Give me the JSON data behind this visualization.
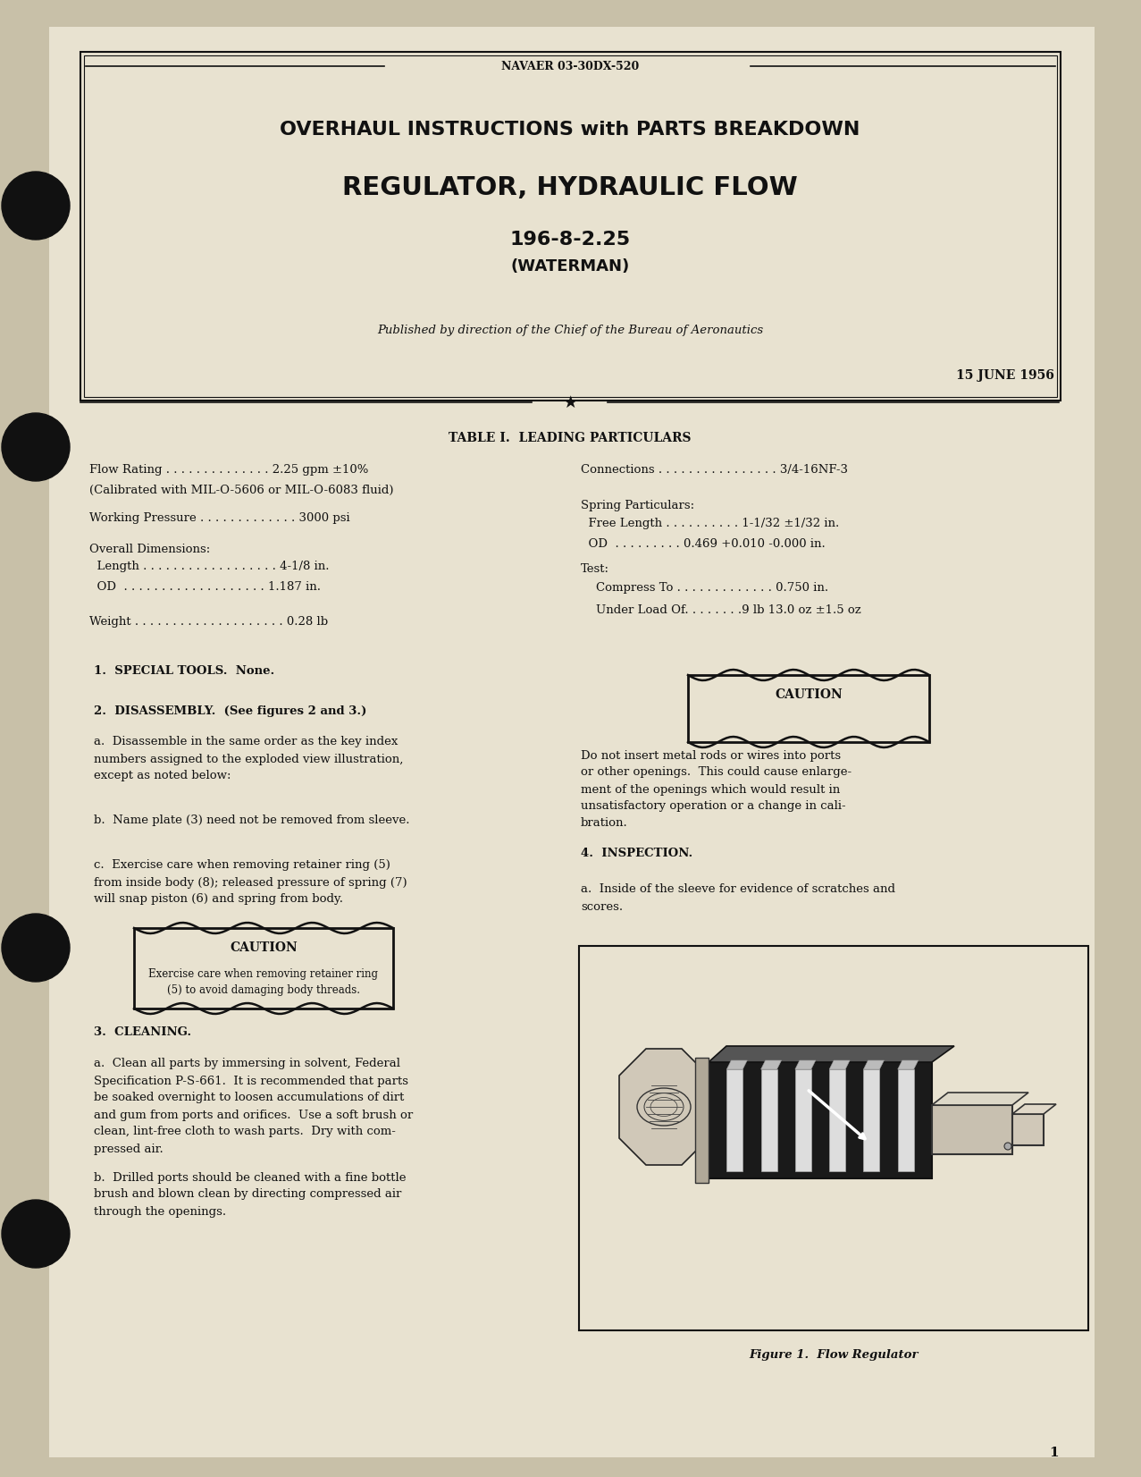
{
  "bg_color": "#c8c0a8",
  "paper_color": "#e8e2d0",
  "inner_paper": "#ede8d8",
  "text_color": "#111111",
  "doc_number": "NAVAER 03-30DX-520",
  "title_line1": "OVERHAUL INSTRUCTIONS with PARTS BREAKDOWN",
  "title_line2": "REGULATOR, HYDRAULIC FLOW",
  "title_line3": "196-8-2.25",
  "title_line4": "(WATERMAN)",
  "published_by": "Published by direction of the Chief of the Bureau of Aeronautics",
  "date": "15 JUNE 1956",
  "table_title": "TABLE I.  LEADING PARTICULARS",
  "section1": "1.  SPECIAL TOOLS.  None.",
  "section2": "2.  DISASSEMBLY.  (See figures 2 and 3.)",
  "section2a_lines": [
    "a.  Disassemble in the same order as the key index",
    "numbers assigned to the exploded view illustration,",
    "except as noted below:"
  ],
  "section2b": "b.  Name plate (3) need not be removed from sleeve.",
  "section2c_lines": [
    "c.  Exercise care when removing retainer ring (5)",
    "from inside body (8); released pressure of spring (7)",
    "will snap piston (6) and spring from body."
  ],
  "caution1_lines": [
    "Exercise care when removing retainer ring",
    "(5) to avoid damaging body threads."
  ],
  "caution2_lines": [
    "Do not insert metal rods or wires into ports",
    "or other openings.  This could cause enlarge-",
    "ment of the openings which would result in",
    "unsatisfactory operation or a change in cali-",
    "bration."
  ],
  "section3": "3.  CLEANING.",
  "section3a_lines": [
    "a.  Clean all parts by immersing in solvent, Federal",
    "Specification P-S-661.  It is recommended that parts",
    "be soaked overnight to loosen accumulations of dirt",
    "and gum from ports and orifices.  Use a soft brush or",
    "clean, lint-free cloth to wash parts.  Dry with com-",
    "pressed air."
  ],
  "section3b_lines": [
    "b.  Drilled ports should be cleaned with a fine bottle",
    "brush and blown clean by directing compressed air",
    "through the openings."
  ],
  "section4": "4.  INSPECTION.",
  "section4a_lines": [
    "a.  Inside of the sleeve for evidence of scratches and",
    "scores."
  ],
  "figure_caption": "Figure 1.  Flow Regulator",
  "page_num": "1",
  "left_table": [
    "Flow Rating . . . . . . . . . . . . . . 2.25 gpm ±10%",
    "(Calibrated with MIL-O-5606 or MIL-O-6083 fluid)",
    "Working Pressure . . . . . . . . . . . . . 3000 psi",
    "Overall Dimensions:",
    "  Length . . . . . . . . . . . . . . . . . . 4-1/8 in.",
    "  OD  . . . . . . . . . . . . . . . . . . . 1.187 in.",
    "Weight . . . . . . . . . . . . . . . . . . . . 0.28 lb"
  ],
  "right_table": [
    "Connections . . . . . . . . . . . . . . . . 3/4-16NF-3",
    "Spring Particulars:",
    "  Free Length . . . . . . . . . . 1-1/32 ±1/32 in.",
    "  OD  . . . . . . . . . 0.469 +0.010 -0.000 in.",
    "Test:",
    "    Compress To . . . . . . . . . . . . . 0.750 in.",
    "    Under Load Of. . . . . . . .9 lb 13.0 oz ±1.5 oz"
  ]
}
